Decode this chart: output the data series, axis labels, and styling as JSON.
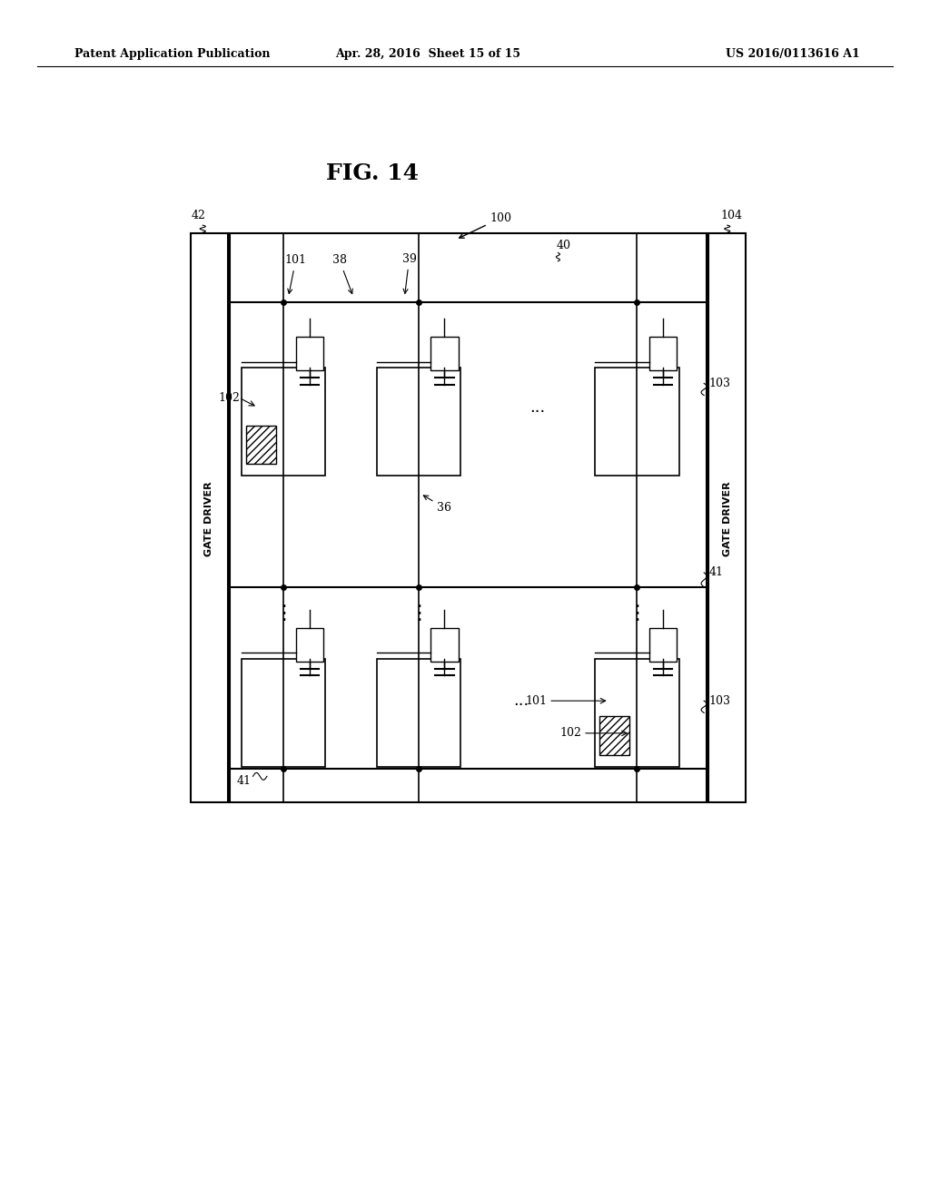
{
  "title": "FIG. 14",
  "header_left": "Patent Application Publication",
  "header_mid": "Apr. 28, 2016  Sheet 15 of 15",
  "header_right": "US 2016/0113616 A1",
  "bg_color": "#ffffff",
  "text_color": "#000000",
  "fig_label": "FIG. 14"
}
